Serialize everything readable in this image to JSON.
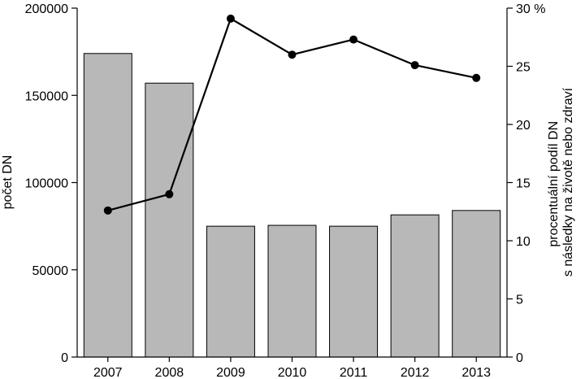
{
  "chart_data": {
    "type": "bar",
    "categories": [
      "2007",
      "2008",
      "2009",
      "2010",
      "2011",
      "2012",
      "2013"
    ],
    "series": [
      {
        "type": "bar",
        "axis": "left",
        "values": [
          174000,
          157000,
          75000,
          75500,
          75000,
          81500,
          84000
        ],
        "color": "#b8b8b8"
      },
      {
        "type": "line",
        "axis": "right",
        "values": [
          12.6,
          14.0,
          29.1,
          26.0,
          27.3,
          25.1,
          24.0
        ],
        "color": "#000000"
      }
    ],
    "ylabel_left": "počet DN",
    "ylabel_right_lines": [
      "procentuální podíl DN",
      "s následky na životě nebo zdraví"
    ],
    "ylim_left": [
      0,
      200000
    ],
    "ylim_right": [
      0,
      30
    ],
    "left_ticks": [
      "0",
      "50000",
      "100000",
      "150000",
      "200000"
    ],
    "left_tick_values": [
      0,
      50000,
      100000,
      150000,
      200000
    ],
    "right_ticks": [
      "0",
      "5",
      "10",
      "15",
      "20",
      "25",
      "30 %"
    ],
    "right_tick_values": [
      0,
      5,
      10,
      15,
      20,
      25,
      30
    ],
    "grid": false,
    "legend": "none"
  }
}
